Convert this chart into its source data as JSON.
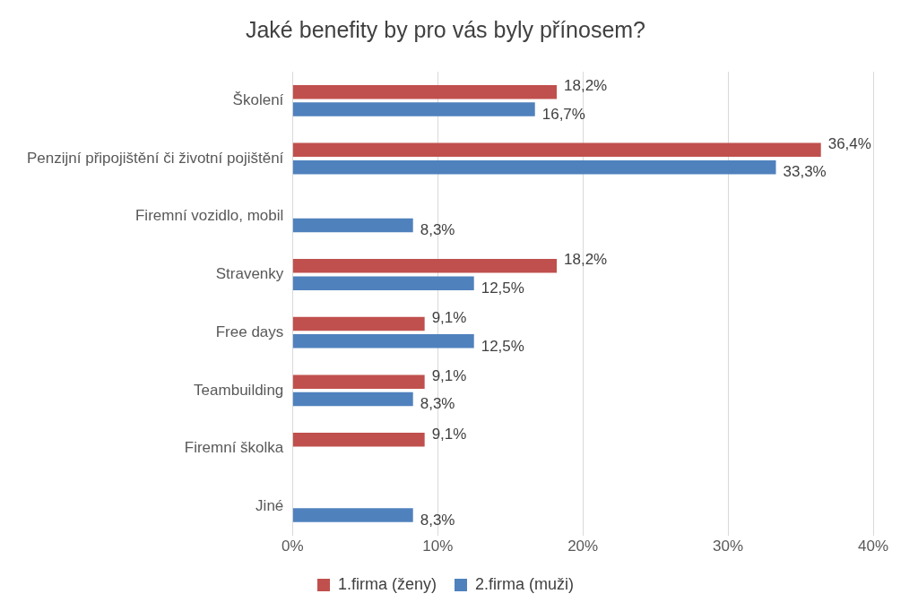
{
  "chart_data": {
    "type": "bar",
    "orientation": "horizontal",
    "title": "Jaké benefity by pro vás byly přínosem?",
    "categories": [
      "Školení",
      "Penzijní připojištění či životní pojištění",
      "Firemní vozidlo, mobil",
      "Stravenky",
      "Free days",
      "Teambuilding",
      "Firemní školka",
      "Jiné"
    ],
    "series": [
      {
        "name": "1.firma (ženy)",
        "color": "#c0504d",
        "values": [
          18.2,
          36.4,
          null,
          18.2,
          9.1,
          9.1,
          9.1,
          null
        ],
        "value_labels": [
          "18,2%",
          "36,4%",
          null,
          "18,2%",
          "9,1%",
          "9,1%",
          "9,1%",
          null
        ]
      },
      {
        "name": "2.firma (muži)",
        "color": "#4f81bd",
        "values": [
          16.7,
          33.3,
          8.3,
          12.5,
          12.5,
          8.3,
          null,
          8.3
        ],
        "value_labels": [
          "16,7%",
          "33,3%",
          "8,3%",
          "12,5%",
          "12,5%",
          "8,3%",
          null,
          "8,3%"
        ]
      }
    ],
    "xlim": [
      0,
      40
    ],
    "xticks": [
      {
        "value": 0,
        "label": "0%"
      },
      {
        "value": 10,
        "label": "10%"
      },
      {
        "value": 20,
        "label": "20%"
      },
      {
        "value": 30,
        "label": "30%"
      },
      {
        "value": 40,
        "label": "40%"
      }
    ],
    "grid": "x",
    "legend": "bottom"
  }
}
